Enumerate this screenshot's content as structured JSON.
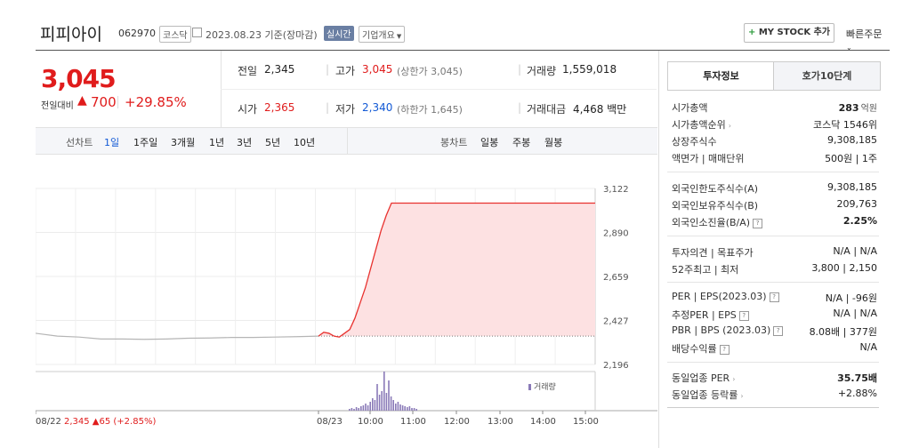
{
  "header": {
    "stock_name": "피피아이",
    "code": "062970",
    "market": "코스닥",
    "date_info": "2023.08.23 기준(장마감)",
    "realtime_label": "실시간",
    "company_info_label": "기업개요",
    "my_stock_label": "MY STOCK 추가",
    "quick_order_label": "빠른주문"
  },
  "price": {
    "current": "3,045",
    "change_label": "전일대비",
    "change_amount": "700",
    "change_pct": "+29.85%"
  },
  "summary": {
    "prev_label": "전일",
    "prev": "2,345",
    "high_label": "고가",
    "high": "3,045",
    "high_limit": "(상한가 3,045)",
    "volume_label": "거래량",
    "volume": "1,559,018",
    "open_label": "시가",
    "open": "2,365",
    "low_label": "저가",
    "low": "2,340",
    "low_limit": "(하한가 1,645)",
    "amount_label": "거래대금",
    "amount": "4,468 백만"
  },
  "chart_tabs": {
    "line_label": "선차트",
    "line_periods": [
      "1일",
      "1주일",
      "3개월",
      "1년",
      "3년",
      "5년",
      "10년"
    ],
    "candle_label": "봉차트",
    "candle_periods": [
      "일봉",
      "주봉",
      "월봉"
    ]
  },
  "chart_data": {
    "type": "line",
    "y_ticks": [
      "3,122",
      "2,890",
      "2,659",
      "2,427",
      "2,196"
    ],
    "ylim": [
      2196,
      3122
    ],
    "x_ticks": [
      "08/22",
      "08/23",
      "10:00",
      "11:00",
      "12:00",
      "13:00",
      "14:00",
      "15:00"
    ],
    "prev_day_label": "08/22 2,345 ▲65 (+2.85%)",
    "volume_label": "거래량",
    "series": [
      {
        "values": [
          2360,
          2345,
          2340,
          2330,
          2330,
          2328,
          2330,
          2334,
          2335,
          2338,
          2338,
          2340,
          2342,
          2345
        ]
      },
      {
        "values": [
          2345,
          2365,
          2360,
          2345,
          2340,
          2360,
          2380,
          2440,
          2520,
          2600,
          2700,
          2800,
          2900,
          2980,
          3045,
          3045,
          3045,
          3045,
          3045,
          3045,
          3045
        ]
      }
    ],
    "colors": {
      "prev_line": "#b5b5b5",
      "today_line": "#e8322f",
      "fill": "#fde1e2",
      "volume": "#8a7ab8"
    }
  },
  "tabs": {
    "invest_info": "투자정보",
    "hoga": "호가10단계"
  },
  "invest": {
    "market_cap_label": "시가총액",
    "market_cap_num": "283",
    "market_cap_unit": "억원",
    "cap_rank_label": "시가총액순위",
    "cap_rank": "코스닥 1546위",
    "shares_label": "상장주식수",
    "shares": "9,308,185",
    "par_label": "액면가 | 매매단위",
    "par": "500원 | 1주",
    "foreign_limit_label": "외국인한도주식수(A)",
    "foreign_limit": "9,308,185",
    "foreign_hold_label": "외국인보유주식수(B)",
    "foreign_hold": "209,763",
    "foreign_ratio_label": "외국인소진율(B/A)",
    "foreign_ratio": "2.25%",
    "opinion_label": "투자의견 | 목표주가",
    "opinion": "N/A | N/A",
    "w52_label": "52주최고 | 최저",
    "w52": "3,800 | 2,150",
    "per_label": "PER | EPS(2023.03)",
    "per": "N/A | -96원",
    "est_per_label": "추정PER | EPS",
    "est_per": "N/A | N/A",
    "pbr_label": "PBR | BPS (2023.03)",
    "pbr": "8.08배 | 377원",
    "dividend_label": "배당수익률",
    "dividend": "N/A",
    "sector_per_label": "동일업종 PER",
    "sector_per": "35.75배",
    "sector_change_label": "동일업종 등락률",
    "sector_change": "+2.88%"
  }
}
